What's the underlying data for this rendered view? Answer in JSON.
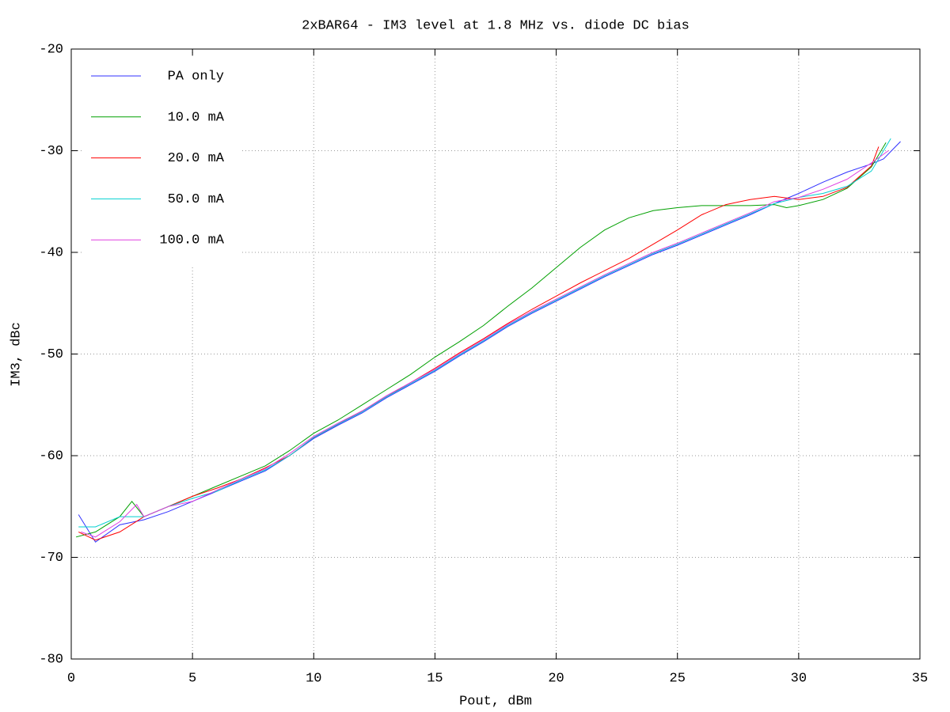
{
  "chart_data": {
    "type": "line",
    "title": "2xBAR64 - IM3 level at 1.8 MHz vs. diode DC bias",
    "x_label": "Pout, dBm",
    "y_label": "IM3, dBc",
    "xlim": [
      0,
      35
    ],
    "xticks": [
      0,
      5,
      10,
      15,
      20,
      25,
      30,
      35
    ],
    "ylim": [
      -80,
      -20
    ],
    "yticks": [
      -80,
      -70,
      -60,
      -50,
      -40,
      -30,
      -20
    ],
    "grid": true,
    "legend": "top-left",
    "series": [
      {
        "name": "PA only",
        "color": "#3030ff",
        "x": [
          0.3,
          1,
          2,
          3,
          4,
          5,
          6,
          7,
          8,
          9,
          10,
          11,
          12,
          13,
          14,
          15,
          16,
          17,
          18,
          19,
          20,
          21,
          22,
          23,
          24,
          25,
          26,
          27,
          28,
          29,
          30,
          31,
          32,
          33,
          33.5,
          34.2
        ],
        "values": [
          -65.8,
          -68.5,
          -66.8,
          -66.3,
          -65.5,
          -64.5,
          -63.5,
          -62.5,
          -61.5,
          -60,
          -58.3,
          -57,
          -55.8,
          -54.3,
          -53,
          -51.7,
          -50.2,
          -48.8,
          -47.3,
          -46,
          -44.8,
          -43.6,
          -42.4,
          -41.3,
          -40.2,
          -39.3,
          -38.3,
          -37.3,
          -36.3,
          -35.2,
          -34.2,
          -33.1,
          -32.1,
          -31.3,
          -30.8,
          -29.1
        ]
      },
      {
        "name": "10.0 mA",
        "color": "#00a000",
        "x": [
          0.2,
          1,
          2,
          2.5,
          3,
          4,
          5,
          6,
          7,
          8,
          9,
          10,
          11,
          12,
          13,
          14,
          15,
          16,
          17,
          18,
          19,
          20,
          21,
          22,
          23,
          24,
          25,
          26,
          27,
          28,
          29,
          29.5,
          30,
          31,
          32,
          33,
          33.6
        ],
        "values": [
          -68,
          -67.5,
          -66,
          -64.5,
          -66,
          -65,
          -64,
          -63,
          -62,
          -61,
          -59.5,
          -57.8,
          -56.5,
          -55,
          -53.5,
          -52,
          -50.3,
          -48.8,
          -47.2,
          -45.3,
          -43.5,
          -41.5,
          -39.5,
          -37.8,
          -36.6,
          -35.9,
          -35.6,
          -35.4,
          -35.4,
          -35.4,
          -35.3,
          -35.6,
          -35.4,
          -34.8,
          -33.7,
          -31.6,
          -29.2
        ]
      },
      {
        "name": "20.0 mA",
        "color": "#ff0000",
        "x": [
          0.3,
          1,
          2,
          3,
          4,
          5,
          6,
          7,
          8,
          9,
          10,
          11,
          12,
          13,
          14,
          15,
          16,
          17,
          18,
          19,
          20,
          21,
          22,
          23,
          24,
          25,
          26,
          27,
          28,
          29,
          30,
          31,
          32,
          33,
          33.3
        ],
        "values": [
          -67.5,
          -68.3,
          -67.5,
          -66,
          -65,
          -64,
          -63.2,
          -62.3,
          -61.2,
          -60,
          -58.2,
          -56.9,
          -55.6,
          -54.2,
          -52.8,
          -51.4,
          -49.9,
          -48.5,
          -47,
          -45.6,
          -44.3,
          -43,
          -41.8,
          -40.6,
          -39.2,
          -37.8,
          -36.3,
          -35.3,
          -34.8,
          -34.5,
          -34.8,
          -34.5,
          -33.6,
          -31.5,
          -29.6
        ]
      },
      {
        "name": "50.0 mA",
        "color": "#00d0d0",
        "x": [
          0.3,
          1,
          2,
          3,
          4,
          5,
          6,
          7,
          8,
          9,
          10,
          11,
          12,
          13,
          14,
          15,
          16,
          17,
          18,
          19,
          20,
          21,
          22,
          23,
          24,
          25,
          26,
          27,
          28,
          29,
          30,
          31,
          32,
          33,
          33.8
        ],
        "values": [
          -67,
          -67,
          -66,
          -66,
          -65,
          -64.2,
          -63.5,
          -62.4,
          -61.4,
          -60,
          -58.2,
          -56.9,
          -55.7,
          -54.2,
          -52.9,
          -51.6,
          -50.1,
          -48.7,
          -47.2,
          -45.9,
          -44.7,
          -43.5,
          -42.3,
          -41.2,
          -40.1,
          -39.2,
          -38.2,
          -37.2,
          -36.2,
          -35.2,
          -34.6,
          -34.2,
          -33.5,
          -32,
          -28.8
        ]
      },
      {
        "name": "100.0 mA",
        "color": "#e040e0",
        "x": [
          0.4,
          1,
          2,
          2.7,
          3,
          4,
          5,
          6,
          7,
          8,
          9,
          10,
          11,
          12,
          13,
          14,
          15,
          16,
          17,
          18,
          19,
          20,
          21,
          22,
          23,
          24,
          25,
          26,
          27,
          28,
          29,
          30,
          31,
          32,
          33,
          33.7
        ],
        "values": [
          -67.5,
          -68,
          -66.5,
          -64.8,
          -66,
          -65,
          -64.5,
          -63.4,
          -62.3,
          -61.3,
          -59.8,
          -58.1,
          -56.8,
          -55.6,
          -54.1,
          -52.8,
          -51.5,
          -50,
          -48.6,
          -47.1,
          -45.8,
          -44.6,
          -43.4,
          -42.2,
          -41.1,
          -40,
          -39.1,
          -38.1,
          -37.1,
          -36.1,
          -35,
          -34.6,
          -33.8,
          -32.8,
          -31.2,
          -30
        ]
      }
    ]
  }
}
